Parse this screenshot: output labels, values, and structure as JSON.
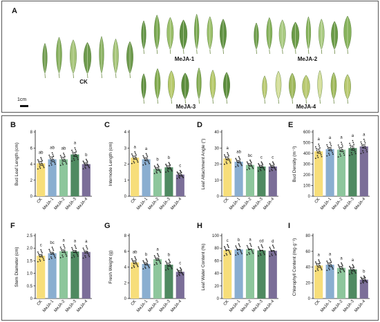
{
  "panel_a": {
    "letter": "A",
    "groups": [
      "CK",
      "MeJA-1",
      "MeJA-2",
      "MeJA-3",
      "MeJA-4"
    ],
    "scale_bar": "1cm"
  },
  "colors": {
    "CK": "#f7de7a",
    "MeJA-1": "#8aaed0",
    "MeJA-2": "#8dc69c",
    "MeJA-3": "#4f8a61",
    "MeJA-4": "#7b6e98"
  },
  "chart_data": [
    {
      "panel": "B",
      "type": "bar",
      "ylabel": "Bud Leaf Length  (cm)",
      "categories": [
        "CK",
        "MeJA-1",
        "MeJA-2",
        "MeJA-3",
        "MeJA-4"
      ],
      "values": [
        4.1,
        4.6,
        4.6,
        5.2,
        4.0
      ],
      "sem": [
        0.25,
        0.3,
        0.25,
        0.25,
        0.15
      ],
      "letters": [
        "ab",
        "ab",
        "ab",
        "a",
        "b"
      ],
      "ylim": [
        0,
        8
      ],
      "yticks": [
        0,
        2,
        4,
        6,
        8
      ]
    },
    {
      "panel": "C",
      "type": "bar",
      "ylabel": "Internode Length (cm)",
      "categories": [
        "CK",
        "MeJA-1",
        "MeJA-2",
        "MeJA-3",
        "MeJA-4"
      ],
      "values": [
        2.4,
        2.3,
        1.7,
        1.8,
        1.35
      ],
      "sem": [
        0.1,
        0.1,
        0.1,
        0.1,
        0.1
      ],
      "letters": [
        "a",
        "a",
        "b",
        "b",
        "c"
      ],
      "ylim": [
        0,
        4
      ],
      "yticks": [
        0,
        1,
        2,
        3,
        4
      ]
    },
    {
      "panel": "D",
      "type": "bar",
      "ylabel": "Leaf Attachment Angle (°)",
      "categories": [
        "CK",
        "MeJA-1",
        "MeJA-2",
        "MeJA-3",
        "MeJA-4"
      ],
      "values": [
        23.5,
        21.5,
        19.5,
        18.5,
        18.5
      ],
      "sem": [
        1.0,
        0.8,
        0.8,
        0.8,
        0.8
      ],
      "letters": [
        "a",
        "ab",
        "bc",
        "c",
        "c"
      ],
      "ylim": [
        0,
        40
      ],
      "yticks": [
        0,
        10,
        20,
        30,
        40
      ]
    },
    {
      "panel": "E",
      "type": "bar",
      "ylabel": "Bud Density (m⁻²)",
      "categories": [
        "CK",
        "MeJA-1",
        "MeJA-2",
        "MeJA-3",
        "MeJA-4"
      ],
      "values": [
        420,
        440,
        435,
        450,
        465
      ],
      "sem": [
        20,
        15,
        20,
        20,
        15
      ],
      "letters": [
        "a",
        "a",
        "a",
        "a",
        "a"
      ],
      "ylim": [
        0,
        600
      ],
      "yticks": [
        0,
        100,
        200,
        300,
        400,
        500,
        600
      ]
    },
    {
      "panel": "F",
      "type": "bar",
      "ylabel": "Stem Diameter (cm)",
      "categories": [
        "CK",
        "MeJA-1",
        "MeJA-2",
        "MeJA-3",
        "MeJA-4"
      ],
      "values": [
        1.7,
        1.8,
        1.88,
        1.87,
        1.85
      ],
      "sem": [
        0.05,
        0.04,
        0.05,
        0.04,
        0.04
      ],
      "letters": [
        "c",
        "bc",
        "a",
        "a",
        "a"
      ],
      "ylim": [
        0,
        2.5
      ],
      "yticks": [
        0,
        0.5,
        1.0,
        1.5,
        2.0,
        2.5
      ]
    },
    {
      "panel": "G",
      "type": "bar",
      "ylabel": "Fresh Weight  (g)",
      "categories": [
        "CK",
        "MeJA-1",
        "MeJA-2",
        "MeJA-3",
        "MeJA-4"
      ],
      "values": [
        4.6,
        4.4,
        5.0,
        4.3,
        3.4
      ],
      "sem": [
        0.2,
        0.15,
        0.15,
        0.2,
        0.15
      ],
      "letters": [
        "ab",
        "b",
        "a",
        "b",
        "c"
      ],
      "ylim": [
        0,
        8
      ],
      "yticks": [
        0,
        2,
        4,
        6,
        8
      ]
    },
    {
      "panel": "H",
      "type": "bar",
      "ylabel": "Leaf Water Content (%)",
      "categories": [
        "CK",
        "MeJA-1",
        "MeJA-2",
        "MeJA-3",
        "MeJA-4"
      ],
      "values": [
        77.0,
        78.0,
        78.5,
        76.5,
        76.0
      ],
      "sem": [
        0.3,
        0.3,
        0.3,
        0.3,
        0.3
      ],
      "letters": [
        "c",
        "b",
        "a",
        "cd",
        "d"
      ],
      "ylim": [
        0,
        100
      ],
      "yticks": [
        0,
        20,
        40,
        60,
        80,
        100
      ]
    },
    {
      "panel": "I",
      "type": "bar",
      "ylabel": "Chlorophyll Content (mg·g⁻¹)",
      "categories": [
        "CK",
        "MeJA-1",
        "MeJA-2",
        "MeJA-3",
        "MeJA-4"
      ],
      "values": [
        42,
        43,
        39,
        37,
        24
      ],
      "sem": [
        2.5,
        2.5,
        2,
        2,
        2
      ],
      "letters": [
        "a",
        "a",
        "a",
        "a",
        "b"
      ],
      "ylim": [
        0,
        80
      ],
      "yticks": [
        0,
        20,
        40,
        60,
        80
      ]
    }
  ]
}
